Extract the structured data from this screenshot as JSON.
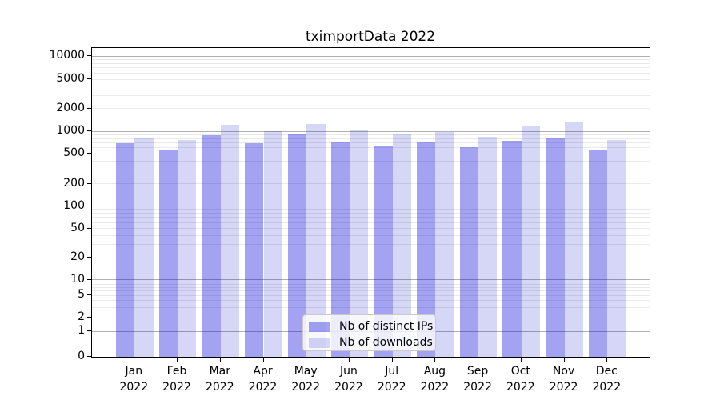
{
  "chart_data": {
    "type": "bar",
    "title": "tximportData 2022",
    "categories": [
      "Jan",
      "Feb",
      "Mar",
      "Apr",
      "May",
      "Jun",
      "Jul",
      "Aug",
      "Sep",
      "Oct",
      "Nov",
      "Dec"
    ],
    "category_year": "2022",
    "series": [
      {
        "name": "Nb of distinct IPs",
        "color": "rgba(0,0,215,0.36)",
        "color_hex_on_white": "#a3a3f0",
        "values": [
          675,
          560,
          865,
          690,
          905,
          725,
          630,
          715,
          605,
          730,
          805,
          565
        ]
      },
      {
        "name": "Nb of downloads",
        "color": "rgba(0,0,205,0.16)",
        "color_hex_on_white": "#d6d6f7",
        "values": [
          820,
          745,
          1200,
          985,
          1240,
          1015,
          890,
          970,
          835,
          1145,
          1290,
          755
        ]
      }
    ],
    "xlabel": "",
    "ylabel": "",
    "y_scale": "symlog",
    "y_ticks": [
      0,
      1,
      2,
      5,
      10,
      20,
      50,
      100,
      200,
      500,
      1000,
      2000,
      5000,
      10000
    ],
    "ylim": [
      0,
      12600
    ],
    "grid": true,
    "grid_major_color": "#b0b0b0",
    "grid_minor_color": "#e9e9e9",
    "legend_position": "lower center"
  }
}
